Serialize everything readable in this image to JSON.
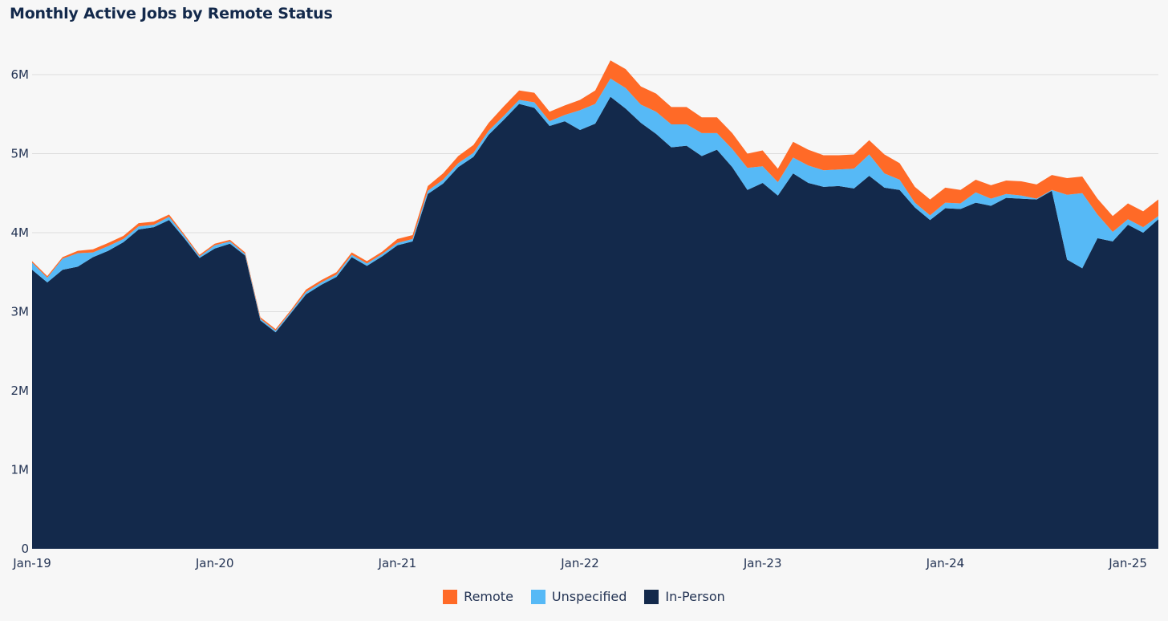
{
  "chart_data": {
    "type": "area",
    "stacked": true,
    "title": "Monthly Active Jobs by Remote Status",
    "xlabel": "",
    "ylabel": "",
    "ylim": [
      0,
      6000000
    ],
    "y_ticks": [
      {
        "value": 0,
        "label": "0"
      },
      {
        "value": 1000000,
        "label": "1M"
      },
      {
        "value": 2000000,
        "label": "2M"
      },
      {
        "value": 3000000,
        "label": "3M"
      },
      {
        "value": 4000000,
        "label": "4M"
      },
      {
        "value": 5000000,
        "label": "5M"
      },
      {
        "value": 6000000,
        "label": "6M"
      }
    ],
    "x_ticks": [
      {
        "index": 0,
        "label": "Jan-19"
      },
      {
        "index": 12,
        "label": "Jan-20"
      },
      {
        "index": 24,
        "label": "Jan-21"
      },
      {
        "index": 36,
        "label": "Jan-22"
      },
      {
        "index": 48,
        "label": "Jan-23"
      },
      {
        "index": 60,
        "label": "Jan-24"
      },
      {
        "index": 72,
        "label": "Jan-25"
      }
    ],
    "x_start": "2019-01",
    "grid": "horizontal",
    "legend_position": "bottom",
    "series": [
      {
        "name": "In-Person",
        "color": "#13294b",
        "values": [
          3.53,
          3.37,
          3.53,
          3.57,
          3.69,
          3.77,
          3.88,
          4.04,
          4.07,
          4.16,
          3.93,
          3.68,
          3.8,
          3.86,
          3.71,
          2.89,
          2.74,
          2.98,
          3.22,
          3.34,
          3.44,
          3.69,
          3.58,
          3.7,
          3.84,
          3.89,
          4.49,
          4.62,
          4.83,
          4.96,
          5.24,
          5.43,
          5.63,
          5.58,
          5.35,
          5.41,
          5.3,
          5.38,
          5.72,
          5.57,
          5.39,
          5.25,
          5.08,
          5.1,
          4.97,
          5.05,
          4.83,
          4.54,
          4.63,
          4.47,
          4.75,
          4.63,
          4.58,
          4.59,
          4.56,
          4.72,
          4.57,
          4.54,
          4.32,
          4.16,
          4.31,
          4.3,
          4.38,
          4.34,
          4.44,
          4.43,
          4.42,
          4.53,
          3.66,
          3.55,
          3.93,
          3.89,
          4.1,
          4.0,
          4.17
        ]
      },
      {
        "name": "Unspecified",
        "color": "#56b9f6",
        "values": [
          0.09,
          0.06,
          0.14,
          0.17,
          0.06,
          0.06,
          0.04,
          0.04,
          0.03,
          0.04,
          0.03,
          0.02,
          0.04,
          0.03,
          0.02,
          0.02,
          0.02,
          0.02,
          0.03,
          0.03,
          0.03,
          0.03,
          0.03,
          0.03,
          0.03,
          0.03,
          0.04,
          0.05,
          0.05,
          0.05,
          0.05,
          0.05,
          0.05,
          0.07,
          0.06,
          0.08,
          0.25,
          0.25,
          0.23,
          0.26,
          0.23,
          0.28,
          0.29,
          0.27,
          0.29,
          0.21,
          0.23,
          0.28,
          0.21,
          0.17,
          0.2,
          0.22,
          0.21,
          0.21,
          0.25,
          0.27,
          0.18,
          0.13,
          0.06,
          0.06,
          0.07,
          0.07,
          0.13,
          0.09,
          0.05,
          0.04,
          0.01,
          0.01,
          0.82,
          0.95,
          0.3,
          0.12,
          0.07,
          0.07,
          0.04
        ]
      },
      {
        "name": "Remote",
        "color": "#ff6a27",
        "values": [
          0.02,
          0.02,
          0.02,
          0.03,
          0.04,
          0.04,
          0.04,
          0.04,
          0.04,
          0.03,
          0.02,
          0.02,
          0.02,
          0.02,
          0.02,
          0.02,
          0.02,
          0.02,
          0.03,
          0.03,
          0.03,
          0.03,
          0.03,
          0.03,
          0.05,
          0.05,
          0.06,
          0.08,
          0.09,
          0.1,
          0.1,
          0.12,
          0.12,
          0.12,
          0.12,
          0.12,
          0.13,
          0.17,
          0.23,
          0.24,
          0.23,
          0.23,
          0.22,
          0.22,
          0.2,
          0.2,
          0.2,
          0.18,
          0.2,
          0.17,
          0.2,
          0.2,
          0.19,
          0.18,
          0.18,
          0.18,
          0.24,
          0.21,
          0.2,
          0.2,
          0.19,
          0.17,
          0.16,
          0.17,
          0.17,
          0.18,
          0.18,
          0.19,
          0.21,
          0.21,
          0.2,
          0.2,
          0.2,
          0.2,
          0.21
        ]
      }
    ]
  }
}
